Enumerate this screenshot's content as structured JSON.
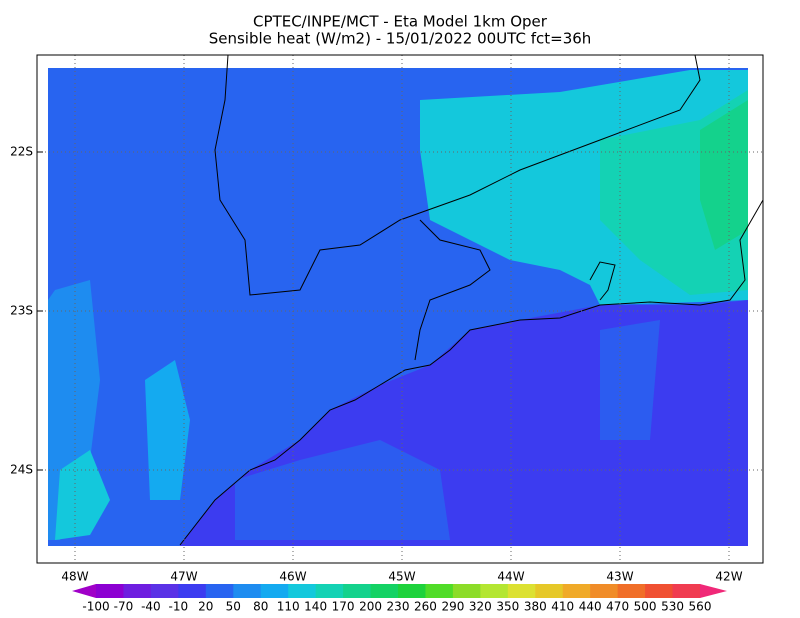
{
  "header": {
    "title": "CPTEC/INPE/MCT -  Eta Model 1km Oper",
    "subtitle": "Sensible heat (W/m2) - 15/01/2022 00UTC fct=36h"
  },
  "map": {
    "lat_labels": [
      "22S",
      "23S",
      "24S"
    ],
    "lon_labels": [
      "48W",
      "47W",
      "46W",
      "45W",
      "44W",
      "43W",
      "42W"
    ]
  },
  "colorbar": {
    "labels": [
      -100,
      -70,
      -40,
      -10,
      20,
      50,
      80,
      110,
      140,
      170,
      200,
      230,
      260,
      290,
      320,
      350,
      380,
      410,
      440,
      470,
      500,
      530,
      560
    ],
    "colors": [
      "#a000c8",
      "#8c00d2",
      "#6e1ee0",
      "#5a32e6",
      "#3c3cf0",
      "#2864f0",
      "#1e8cf0",
      "#14aaf0",
      "#14c8dc",
      "#14d2b4",
      "#14d28c",
      "#14d264",
      "#1ed23c",
      "#50dc28",
      "#8cdc28",
      "#b4e632",
      "#dce132",
      "#e6c828",
      "#f0aa28",
      "#f08c28",
      "#f06e28",
      "#f05032",
      "#f03c50",
      "#f02878"
    ]
  }
}
